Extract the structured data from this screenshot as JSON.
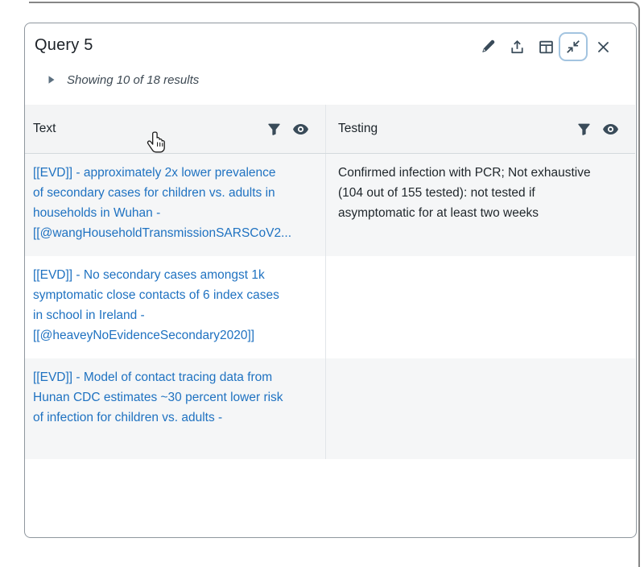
{
  "card": {
    "title": "Query 5"
  },
  "toolbar": {
    "buttons": [
      "edit",
      "export",
      "table-view",
      "collapse",
      "close"
    ],
    "icons": [
      "pencil-icon",
      "export-icon",
      "table-icon",
      "collapse-arrows-icon",
      "close-icon"
    ],
    "active_button": "collapse"
  },
  "summary": {
    "label": "Showing 10 of 18 results",
    "icon": "caret-right-icon"
  },
  "table": {
    "columns": [
      {
        "label": "Text",
        "icons": [
          "filter-icon",
          "eye-icon"
        ]
      },
      {
        "label": "Testing",
        "icons": [
          "filter-icon",
          "eye-icon"
        ]
      }
    ],
    "rows": [
      {
        "text": [
          "[[EVD]] - approximately 2x lower prevalence",
          "of secondary cases for children vs. adults in",
          "households in Wuhan -",
          "[[@wangHouseholdTransmissionSARSCoV2..."
        ],
        "testing": [
          "Confirmed infection with PCR; Not exhaustive",
          "(104 out of 155 tested): not tested if",
          "asymptomatic for at least two weeks"
        ]
      },
      {
        "text": [
          "[[EVD]] - No secondary cases amongst 1k",
          "symptomatic close contacts of 6 index cases",
          "in school in Ireland -",
          "[[@heaveyNoEvidenceSecondary2020]]"
        ],
        "testing": []
      },
      {
        "text": [
          "[[EVD]] - Model of contact tracing data from",
          "Hunan CDC estimates ~30 percent lower risk",
          "of infection for children vs. adults -"
        ],
        "testing": []
      }
    ]
  },
  "cursor": {
    "icon": "hand-cursor"
  },
  "colors": {
    "link": "#1f72c1",
    "icon": "#394b59",
    "accent": "#a3c4e0"
  }
}
